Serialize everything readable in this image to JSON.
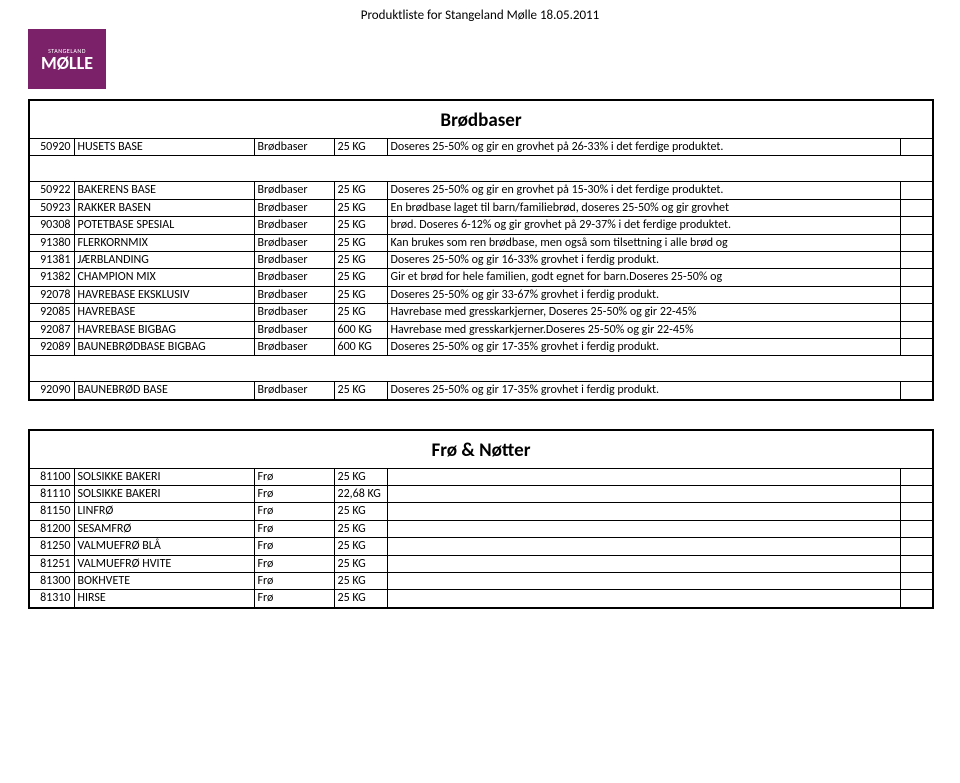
{
  "page_title": "Produktliste for Stangeland Mølle 18.05.2011",
  "logo": {
    "top": "STANGELAND",
    "mid": "MØLLE",
    "bottom": "",
    "bg": "#7a2169"
  },
  "tables": [
    {
      "header": "Brødbaser",
      "rows": [
        {
          "id": "50920",
          "name": "HUSETS BASE",
          "cat": "Brødbaser",
          "size": "25 KG",
          "desc": "Doseres 25-50% og gir en grovhet på 26-33% i det ferdige produktet."
        },
        {
          "spacer": true
        },
        {
          "id": "50922",
          "name": "BAKERENS BASE",
          "cat": "Brødbaser",
          "size": "25 KG",
          "desc": "Doseres 25-50% og gir en grovhet på 15-30% i det ferdige produktet."
        },
        {
          "id": "50923",
          "name": "RAKKER BASEN",
          "cat": "Brødbaser",
          "size": "25 KG",
          "desc": "En brødbase laget til barn/familiebrød, doseres 25-50% og gir grovhet"
        },
        {
          "id": "90308",
          "name": "POTETBASE SPESIAL",
          "cat": "Brødbaser",
          "size": "25 KG",
          "desc": "brød. Doseres 6-12% og gir grovhet på 29-37% i det ferdige produktet."
        },
        {
          "id": "91380",
          "name": "FLERKORNMIX",
          "cat": "Brødbaser",
          "size": "25 KG",
          "desc": "Kan brukes som ren brødbase, men også som tilsettning i alle brød og"
        },
        {
          "id": "91381",
          "name": "JÆRBLANDING",
          "cat": "Brødbaser",
          "size": "25 KG",
          "desc": "Doseres 25-50% og gir 16-33% grovhet i ferdig produkt."
        },
        {
          "id": "91382",
          "name": "CHAMPION MIX",
          "cat": "Brødbaser",
          "size": "25 KG",
          "desc": "Gir et brød for hele familien, godt egnet for barn.Doseres 25-50% og"
        },
        {
          "id": "92078",
          "name": "HAVREBASE EKSKLUSIV",
          "cat": "Brødbaser",
          "size": "25 KG",
          "desc": "Doseres 25-50% og gir 33-67% grovhet i ferdig produkt."
        },
        {
          "id": "92085",
          "name": "HAVREBASE",
          "cat": "Brødbaser",
          "size": "25 KG",
          "desc": "Havrebase med gresskarkjerner, Doseres 25-50% og gir 22-45%"
        },
        {
          "id": "92087",
          "name": "HAVREBASE BIGBAG",
          "cat": "Brødbaser",
          "size": "600 KG",
          "desc": "Havrebase med gresskarkjerner.Doseres 25-50% og gir 22-45%"
        },
        {
          "id": "92089",
          "name": "BAUNEBRØDBASE  BIGBAG",
          "cat": "Brødbaser",
          "size": "600 KG",
          "desc": "Doseres 25-50% og gir 17-35% grovhet i ferdig produkt."
        },
        {
          "spacer": true
        },
        {
          "id": "92090",
          "name": "BAUNEBRØD BASE",
          "cat": "Brødbaser",
          "size": "25 KG",
          "desc": "Doseres 25-50% og gir 17-35% grovhet i ferdig produkt."
        }
      ]
    },
    {
      "header": "Frø & Nøtter",
      "rows": [
        {
          "id": "81100",
          "name": "SOLSIKKE BAKERI",
          "cat": "Frø",
          "size": "25 KG",
          "desc": ""
        },
        {
          "id": "81110",
          "name": "SOLSIKKE BAKERI",
          "cat": "Frø",
          "size": "22,68 KG",
          "desc": ""
        },
        {
          "id": "81150",
          "name": "LINFRØ",
          "cat": "Frø",
          "size": "25 KG",
          "desc": ""
        },
        {
          "id": "81200",
          "name": "SESAMFRØ",
          "cat": "Frø",
          "size": "25 KG",
          "desc": ""
        },
        {
          "id": "81250",
          "name": "VALMUEFRØ BLÅ",
          "cat": "Frø",
          "size": "25 KG",
          "desc": ""
        },
        {
          "id": "81251",
          "name": "VALMUEFRØ HVITE",
          "cat": "Frø",
          "size": "25 KG",
          "desc": ""
        },
        {
          "id": "81300",
          "name": "BOKHVETE",
          "cat": "Frø",
          "size": "25 KG",
          "desc": ""
        },
        {
          "id": "81310",
          "name": "HIRSE",
          "cat": "Frø",
          "size": "25 KG",
          "desc": ""
        }
      ]
    }
  ]
}
